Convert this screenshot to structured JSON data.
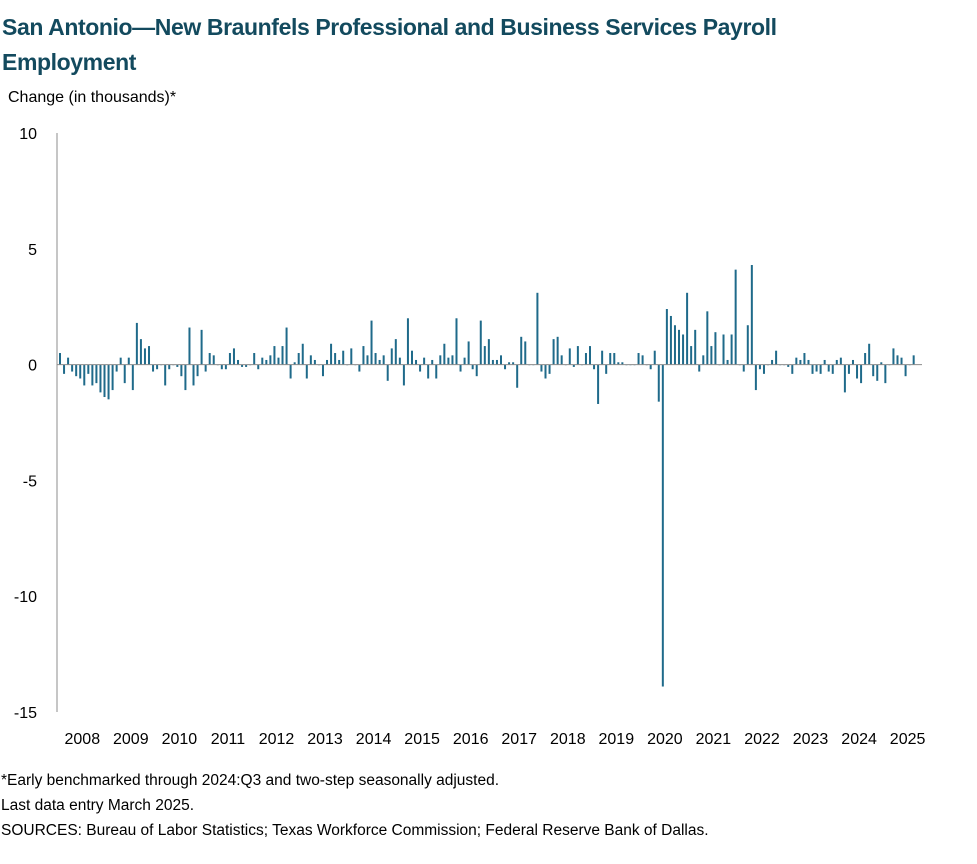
{
  "title": "San Antonio—New Braunfels Professional and Business Services Payroll Employment",
  "notes": {
    "footnote": "*Early benchmarked through 2024:Q3 and two-step seasonally adjusted.",
    "last_entry": "Last data entry March 2025.",
    "sources": "SOURCES: Bureau of Labor Statistics; Texas Workforce Commission; Federal Reserve Bank of Dallas."
  },
  "colors": {
    "bar": "#1f6a8a",
    "axis": "#8c8c8c",
    "title": "#134a5e"
  },
  "chart_data": {
    "type": "bar",
    "ylabel": "Change (in thousands)*",
    "ylim": [
      -15,
      10
    ],
    "yticks": [
      10,
      5,
      0,
      -5,
      -10,
      -15
    ],
    "year_labels": [
      "2008",
      "2009",
      "2010",
      "2011",
      "2012",
      "2013",
      "2014",
      "2015",
      "2016",
      "2017",
      "2018",
      "2019",
      "2020",
      "2021",
      "2022",
      "2023",
      "2024",
      "2025"
    ],
    "start": "2008-01",
    "end": "2025-03",
    "grid": false,
    "legend": "none",
    "series": [
      {
        "values": [
          0.5,
          -0.4,
          0.3,
          -0.3,
          -0.5,
          -0.6,
          -0.9,
          -0.4,
          -0.9,
          -0.8,
          -1.2,
          -1.4,
          -1.5,
          -1.1,
          -0.3,
          0.3,
          -0.8,
          0.3,
          -1.1,
          1.8,
          1.1,
          0.7,
          0.8,
          -0.3,
          -0.2,
          0.0,
          -0.9,
          -0.2,
          0.0,
          -0.1,
          -0.5,
          -1.1,
          1.6,
          -0.9,
          -0.5,
          1.5,
          -0.3,
          0.5,
          0.4,
          0.0,
          -0.2,
          -0.2,
          0.5,
          0.7,
          0.2,
          -0.1,
          -0.1,
          0.0,
          0.5,
          -0.2,
          0.3,
          0.2,
          0.4,
          0.8,
          0.3,
          0.8,
          1.6,
          -0.6,
          0.1,
          0.5,
          0.9,
          -0.6,
          0.4,
          0.2,
          0.0,
          -0.5,
          0.2,
          0.9,
          0.5,
          0.2,
          0.6,
          0.0,
          0.7,
          0.0,
          -0.3,
          0.8,
          0.4,
          1.9,
          0.5,
          0.2,
          0.4,
          -0.7,
          0.7,
          1.1,
          0.3,
          -0.9,
          2.0,
          0.6,
          0.2,
          -0.3,
          0.3,
          -0.6,
          0.2,
          -0.6,
          0.4,
          0.9,
          0.3,
          0.4,
          2.0,
          -0.3,
          0.3,
          1.0,
          -0.2,
          -0.5,
          1.9,
          0.8,
          1.1,
          0.2,
          0.2,
          0.4,
          -0.2,
          0.1,
          0.1,
          -1.0,
          1.2,
          1.0,
          0.0,
          0.0,
          3.1,
          -0.3,
          -0.6,
          -0.4,
          1.1,
          1.2,
          0.4,
          0.0,
          0.7,
          -0.1,
          0.8,
          0.0,
          0.5,
          0.8,
          -0.2,
          -1.7,
          0.6,
          -0.4,
          0.5,
          0.5,
          0.1,
          0.1,
          0.0,
          0.0,
          0.0,
          0.5,
          0.4,
          0.0,
          -0.2,
          0.6,
          -1.6,
          -13.9,
          2.4,
          2.1,
          1.7,
          1.5,
          1.3,
          3.1,
          0.8,
          1.5,
          -0.3,
          0.4,
          2.3,
          0.8,
          1.4,
          0.0,
          1.3,
          0.2,
          1.3,
          4.1,
          0.0,
          -0.3,
          1.7,
          4.3,
          -1.1,
          -0.2,
          -0.4,
          0.0,
          0.2,
          0.6,
          0.0,
          0.0,
          -0.1,
          -0.4,
          0.3,
          0.2,
          0.5,
          0.2,
          -0.4,
          -0.3,
          -0.4,
          0.2,
          -0.3,
          -0.4,
          0.2,
          0.3,
          -1.2,
          -0.4,
          0.2,
          -0.6,
          -0.8,
          0.5,
          0.9,
          -0.5,
          -0.7,
          0.1,
          -0.8,
          0.0,
          0.7,
          0.4,
          0.3,
          -0.5,
          0.0,
          0.4
        ]
      }
    ]
  }
}
